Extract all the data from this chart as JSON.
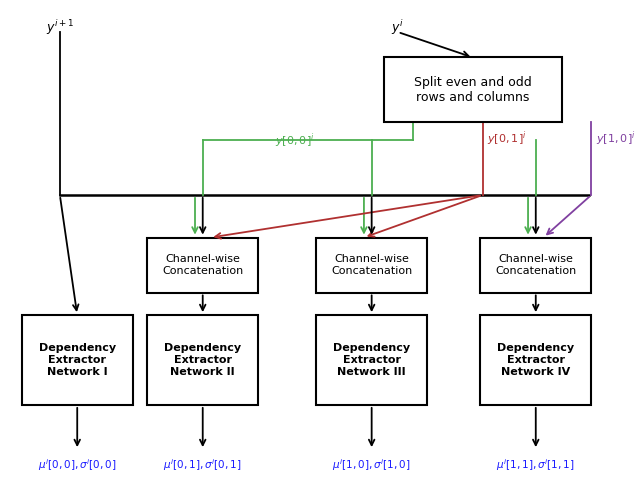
{
  "bg_color": "#ffffff",
  "black": "#000000",
  "green_color": "#4CAF50",
  "red_color": "#b03030",
  "purple_color": "#8040a0",
  "blue_label_color": "#1a1aff",
  "fig_width": 6.4,
  "fig_height": 4.86,
  "split_box_text": "Split even and odd\nrows and columns",
  "y00_label": "$y[0,0]^i$",
  "y01_label": "$y[0,1]^i$",
  "y10_label": "$y[1,0]^i$",
  "concat_text": "Channel-wise\nConcatenation",
  "dep_texts": [
    "Dependency\nExtractor\nNetwork I",
    "Dependency\nExtractor\nNetwork II",
    "Dependency\nExtractor\nNetwork III",
    "Dependency\nExtractor\nNetwork IV"
  ],
  "output_labels": [
    "$\\mu^i[0,0], \\sigma^i[0,0]$",
    "$\\mu^i[0,1], \\sigma^i[0,1]$",
    "$\\mu^i[1,0], \\sigma^i[1,0]$",
    "$\\mu^i[1,1], \\sigma^i[1,1]$"
  ]
}
